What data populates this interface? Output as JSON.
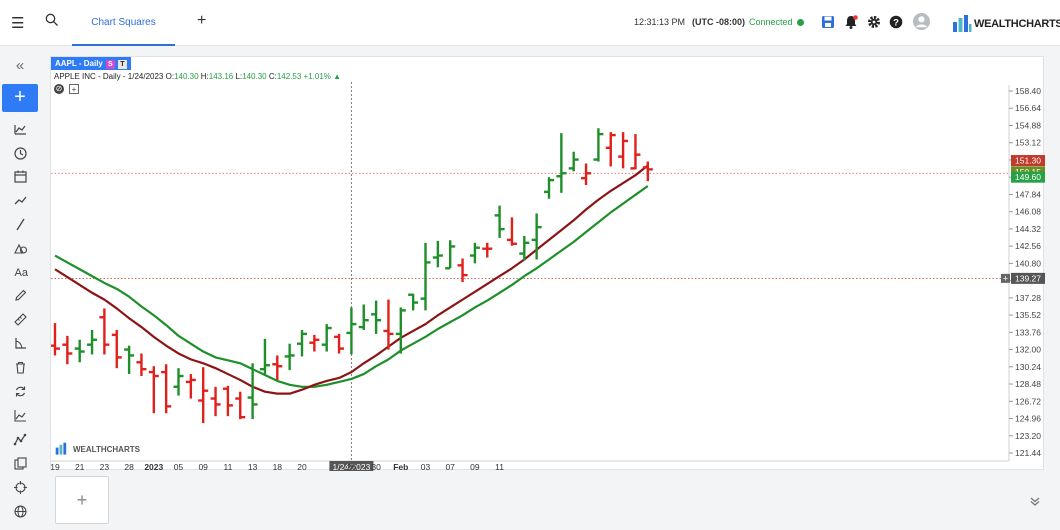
{
  "header": {
    "menu_icon": "hamburger-icon",
    "search_icon": "search-icon",
    "tab_label": "Chart Squares",
    "add_tab": "+",
    "clock": "12:31:13 PM",
    "timezone": "(UTC -08:00)",
    "connection": "Connected",
    "brand_text": "WEALTH",
    "brand_bold": "CHARTS"
  },
  "sidebar": {
    "collapse": "«",
    "add": "+",
    "tools": [
      "indicators-icon",
      "clock-icon",
      "calendar-icon",
      "trend-icon",
      "line-icon",
      "shapes-icon",
      "text-icon",
      "pencil-icon",
      "ruler-icon",
      "angle-icon",
      "trash-icon",
      "sync-icon",
      "chart-type-icon",
      "zigzag-icon",
      "layers-icon",
      "crosshair-icon",
      "globe-icon"
    ]
  },
  "chart_header": {
    "symbol": "AAPL - Daily",
    "badge_s": "S",
    "badge_t": "T",
    "name": "APPLE INC - Daily - 1/24/2023 O:",
    "open": "140.30",
    "high_label": "H:",
    "high": "143.16",
    "low_label": "L:",
    "low": "140.30",
    "close_label": "C:",
    "close": "142.53",
    "change": "+1.01%",
    "change_arrow": "▲",
    "watermark_a": "WEALTH",
    "watermark_b": "CHARTS"
  },
  "chart_data": {
    "type": "line",
    "title": "",
    "ylim": [
      121.44,
      158.4
    ],
    "yticks": [
      "158.40",
      "156.64",
      "154.88",
      "153.12",
      "151.36",
      "149.60",
      "147.84",
      "146.08",
      "144.32",
      "142.56",
      "140.80",
      "139.04",
      "137.28",
      "135.52",
      "133.76",
      "132.00",
      "130.24",
      "128.48",
      "126.72",
      "124.96",
      "123.20",
      "121.44"
    ],
    "price_tags": [
      {
        "label": "151.30",
        "color": "#c0392b",
        "value": 151.3
      },
      {
        "label": "150.15",
        "color": "#6b8e23",
        "value": 150.15
      },
      {
        "label": "149.60",
        "color": "#27a046",
        "value": 149.6
      },
      {
        "label": "139.27",
        "color": "#555555",
        "value": 139.27
      }
    ],
    "crosshair": {
      "date_label": "1/24/2023",
      "price": 150.0,
      "bar_index": 24
    },
    "xticks": [
      {
        "label": "19",
        "i": 0
      },
      {
        "label": "21",
        "i": 2
      },
      {
        "label": "23",
        "i": 4
      },
      {
        "label": "28",
        "i": 6
      },
      {
        "label": "2023",
        "i": 8,
        "bold": true
      },
      {
        "label": "05",
        "i": 10
      },
      {
        "label": "09",
        "i": 12
      },
      {
        "label": "11",
        "i": 14
      },
      {
        "label": "13",
        "i": 16
      },
      {
        "label": "18",
        "i": 18
      },
      {
        "label": "20",
        "i": 20
      },
      {
        "label": "1/24/2023",
        "i": 22
      },
      {
        "label": "26",
        "i": 24
      },
      {
        "label": "30",
        "i": 26
      },
      {
        "label": "Feb",
        "i": 28,
        "bold": true
      },
      {
        "label": "03",
        "i": 30
      },
      {
        "label": "07",
        "i": 32
      },
      {
        "label": "09",
        "i": 34
      },
      {
        "label": "11",
        "i": 36
      }
    ],
    "bars": [
      {
        "o": 132.4,
        "h": 134.7,
        "l": 131.4,
        "c": 132.1
      },
      {
        "o": 132.5,
        "h": 133.4,
        "l": 130.5,
        "c": 131.6
      },
      {
        "o": 132.1,
        "h": 133.0,
        "l": 130.7,
        "c": 131.8
      },
      {
        "o": 132.5,
        "h": 134.0,
        "l": 131.5,
        "c": 133.0
      },
      {
        "o": 135.3,
        "h": 136.2,
        "l": 131.5,
        "c": 132.5
      },
      {
        "o": 133.5,
        "h": 134.0,
        "l": 130.1,
        "c": 131.2
      },
      {
        "o": 132.0,
        "h": 132.4,
        "l": 129.5,
        "c": 131.4
      },
      {
        "o": 130.7,
        "h": 131.6,
        "l": 129.3,
        "c": 130.0
      },
      {
        "o": 129.7,
        "h": 130.3,
        "l": 125.5,
        "c": 129.3
      },
      {
        "o": 129.7,
        "h": 130.5,
        "l": 125.5,
        "c": 126.2
      },
      {
        "o": 128.2,
        "h": 130.1,
        "l": 127.3,
        "c": 129.3
      },
      {
        "o": 128.7,
        "h": 129.5,
        "l": 127.0,
        "c": 128.9
      },
      {
        "o": 126.8,
        "h": 130.2,
        "l": 124.5,
        "c": 127.8
      },
      {
        "o": 127.0,
        "h": 128.2,
        "l": 125.2,
        "c": 126.4
      },
      {
        "o": 128.0,
        "h": 128.3,
        "l": 125.2,
        "c": 126.3
      },
      {
        "o": 127.0,
        "h": 127.7,
        "l": 124.9,
        "c": 125.1
      },
      {
        "o": 127.1,
        "h": 130.6,
        "l": 124.9,
        "c": 126.4
      },
      {
        "o": 130.0,
        "h": 133.1,
        "l": 129.5,
        "c": 130.4
      },
      {
        "o": 130.5,
        "h": 131.4,
        "l": 128.9,
        "c": 130.3
      },
      {
        "o": 131.3,
        "h": 132.6,
        "l": 129.9,
        "c": 131.4
      },
      {
        "o": 132.6,
        "h": 134.0,
        "l": 131.3,
        "c": 133.6
      },
      {
        "o": 132.7,
        "h": 133.5,
        "l": 131.8,
        "c": 133.0
      },
      {
        "o": 132.5,
        "h": 134.6,
        "l": 131.8,
        "c": 134.2
      },
      {
        "o": 133.3,
        "h": 133.6,
        "l": 131.6,
        "c": 132.1
      },
      {
        "o": 133.7,
        "h": 136.3,
        "l": 131.5,
        "c": 134.6
      },
      {
        "o": 134.3,
        "h": 136.6,
        "l": 134.0,
        "c": 135.0
      },
      {
        "o": 135.6,
        "h": 137.0,
        "l": 133.6,
        "c": 135.0
      },
      {
        "o": 133.9,
        "h": 137.1,
        "l": 132.0,
        "c": 133.6
      },
      {
        "o": 133.6,
        "h": 136.3,
        "l": 131.6,
        "c": 136.0
      },
      {
        "o": 137.6,
        "h": 137.7,
        "l": 136.0,
        "c": 136.8
      },
      {
        "o": 137.2,
        "h": 142.9,
        "l": 136.0,
        "c": 140.9
      },
      {
        "o": 141.4,
        "h": 143.1,
        "l": 140.4,
        "c": 141.6
      },
      {
        "o": 140.3,
        "h": 143.16,
        "l": 140.3,
        "c": 142.53
      },
      {
        "o": 140.6,
        "h": 141.3,
        "l": 138.9,
        "c": 139.6
      },
      {
        "o": 141.6,
        "h": 142.9,
        "l": 140.8,
        "c": 142.4
      },
      {
        "o": 142.3,
        "h": 142.9,
        "l": 141.4,
        "c": 142.3
      },
      {
        "o": 145.7,
        "h": 146.7,
        "l": 143.4,
        "c": 144.3
      },
      {
        "o": 143.2,
        "h": 145.5,
        "l": 142.6,
        "c": 142.8
      },
      {
        "o": 141.8,
        "h": 143.6,
        "l": 141.1,
        "c": 142.9
      },
      {
        "o": 143.2,
        "h": 145.9,
        "l": 141.2,
        "c": 144.5
      },
      {
        "o": 148.1,
        "h": 149.6,
        "l": 147.4,
        "c": 149.3
      },
      {
        "o": 149.7,
        "h": 154.1,
        "l": 148.0,
        "c": 150.0
      },
      {
        "o": 150.5,
        "h": 152.2,
        "l": 150.2,
        "c": 151.4
      },
      {
        "o": 149.5,
        "h": 151.0,
        "l": 148.8,
        "c": 150.0
      },
      {
        "o": 151.4,
        "h": 154.6,
        "l": 151.2,
        "c": 154.0
      },
      {
        "o": 152.6,
        "h": 154.2,
        "l": 150.7,
        "c": 153.9
      },
      {
        "o": 151.7,
        "h": 154.2,
        "l": 150.5,
        "c": 153.3
      },
      {
        "o": 150.5,
        "h": 154.0,
        "l": 150.4,
        "c": 151.9
      },
      {
        "o": 150.6,
        "h": 151.2,
        "l": 149.2,
        "c": 150.4
      }
    ],
    "series": [
      {
        "color": "#1e8f2a",
        "values": [
          141.6,
          140.9,
          140.2,
          139.5,
          138.8,
          138.2,
          137.4,
          136.4,
          135.5,
          134.5,
          133.4,
          132.6,
          131.8,
          131.2,
          130.9,
          130.6,
          130.0,
          129.4,
          128.8,
          128.4,
          128.2,
          128.2,
          128.4,
          128.7,
          129.0,
          129.5,
          130.3,
          131.0,
          131.9,
          132.6,
          133.3,
          134.1,
          134.8,
          135.5,
          136.3,
          137.0,
          137.8,
          138.6,
          139.5,
          140.3,
          141.2,
          142.1,
          143.0,
          144.0,
          145.0,
          146.0,
          146.9,
          147.8,
          148.7
        ]
      },
      {
        "color": "#8b1515",
        "values": [
          140.2,
          139.4,
          138.6,
          137.8,
          137.1,
          136.2,
          135.2,
          134.3,
          133.3,
          132.4,
          131.6,
          131.0,
          130.6,
          130.1,
          129.5,
          128.9,
          128.2,
          127.7,
          127.5,
          127.5,
          127.9,
          128.4,
          128.8,
          129.1,
          129.7,
          130.6,
          131.4,
          132.3,
          133.2,
          133.9,
          134.6,
          135.5,
          136.3,
          137.1,
          137.9,
          138.7,
          139.5,
          140.3,
          141.2,
          142.2,
          143.2,
          144.2,
          145.2,
          146.3,
          147.3,
          148.2,
          149.0,
          149.8,
          150.8
        ]
      }
    ]
  },
  "footer": {
    "new_chart": "+",
    "collapse": "»"
  }
}
